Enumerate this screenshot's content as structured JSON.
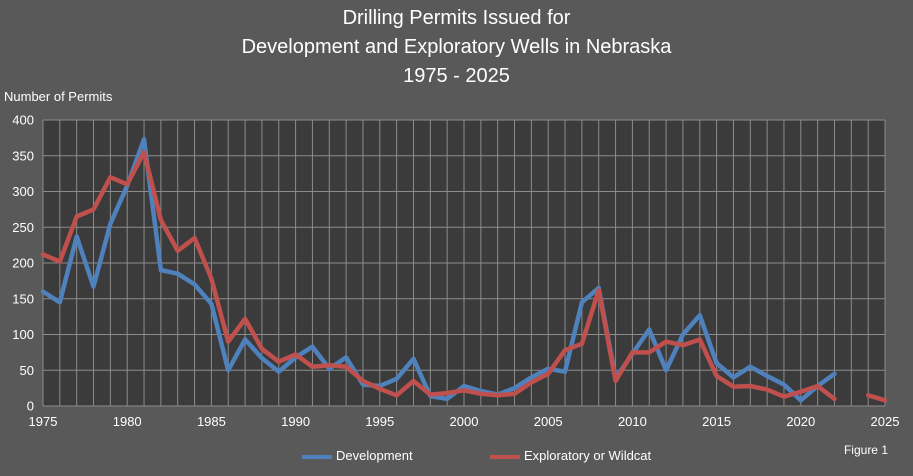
{
  "chart_data": {
    "type": "line",
    "title_lines": [
      "Drilling Permits Issued for",
      "Development and Exploratory Wells in Nebraska",
      "1975 - 2025"
    ],
    "ylabel": "Number of Permits",
    "xlabel": "",
    "ylim": [
      0,
      400
    ],
    "yticks": [
      0,
      50,
      100,
      150,
      200,
      250,
      300,
      350,
      400
    ],
    "xlim": [
      1975,
      2025
    ],
    "xticks": [
      1975,
      1980,
      1985,
      1990,
      1995,
      2000,
      2005,
      2010,
      2015,
      2020,
      2025
    ],
    "grid": true,
    "legend_position": "bottom",
    "figure_label": "Figure 1",
    "background": "#3b3b3b",
    "series": [
      {
        "name": "Development",
        "color": "#4f81bd",
        "points": [
          [
            1975,
            160
          ],
          [
            1976,
            145
          ],
          [
            1977,
            237
          ],
          [
            1978,
            167
          ],
          [
            1979,
            255
          ],
          [
            1980,
            308
          ],
          [
            1981,
            373
          ],
          [
            1982,
            190
          ],
          [
            1983,
            185
          ],
          [
            1984,
            170
          ],
          [
            1985,
            143
          ],
          [
            1986,
            50
          ],
          [
            1987,
            93
          ],
          [
            1988,
            67
          ],
          [
            1989,
            48
          ],
          [
            1990,
            68
          ],
          [
            1991,
            83
          ],
          [
            1992,
            52
          ],
          [
            1993,
            68
          ],
          [
            1994,
            30
          ],
          [
            1995,
            28
          ],
          [
            1996,
            38
          ],
          [
            1997,
            66
          ],
          [
            1998,
            14
          ],
          [
            1999,
            10
          ],
          [
            2000,
            28
          ],
          [
            2001,
            21
          ],
          [
            2002,
            16
          ],
          [
            2003,
            25
          ],
          [
            2004,
            40
          ],
          [
            2005,
            52
          ],
          [
            2006,
            48
          ],
          [
            2007,
            145
          ],
          [
            2008,
            165
          ],
          [
            2009,
            39
          ],
          [
            2010,
            73
          ],
          [
            2011,
            107
          ],
          [
            2012,
            50
          ],
          [
            2013,
            100
          ],
          [
            2014,
            127
          ],
          [
            2015,
            60
          ],
          [
            2016,
            40
          ],
          [
            2017,
            55
          ],
          [
            2018,
            42
          ],
          [
            2019,
            30
          ],
          [
            2020,
            8
          ],
          [
            2021,
            28
          ],
          [
            2022,
            45
          ]
        ]
      },
      {
        "name": "Exploratory or Wildcat",
        "color": "#c0504d",
        "points": [
          [
            1975,
            212
          ],
          [
            1976,
            202
          ],
          [
            1977,
            265
          ],
          [
            1978,
            275
          ],
          [
            1979,
            320
          ],
          [
            1980,
            310
          ],
          [
            1981,
            355
          ],
          [
            1982,
            260
          ],
          [
            1983,
            217
          ],
          [
            1984,
            235
          ],
          [
            1985,
            178
          ],
          [
            1986,
            90
          ],
          [
            1987,
            122
          ],
          [
            1988,
            80
          ],
          [
            1989,
            62
          ],
          [
            1990,
            72
          ],
          [
            1991,
            55
          ],
          [
            1992,
            57
          ],
          [
            1993,
            55
          ],
          [
            1994,
            35
          ],
          [
            1995,
            24
          ],
          [
            1996,
            15
          ],
          [
            1997,
            35
          ],
          [
            1998,
            16
          ],
          [
            1999,
            18
          ],
          [
            2000,
            22
          ],
          [
            2001,
            17
          ],
          [
            2002,
            15
          ],
          [
            2003,
            17
          ],
          [
            2004,
            33
          ],
          [
            2005,
            45
          ],
          [
            2006,
            78
          ],
          [
            2007,
            87
          ],
          [
            2008,
            162
          ],
          [
            2009,
            35
          ],
          [
            2010,
            75
          ],
          [
            2011,
            75
          ],
          [
            2012,
            90
          ],
          [
            2013,
            85
          ],
          [
            2014,
            93
          ],
          [
            2015,
            42
          ],
          [
            2016,
            27
          ],
          [
            2017,
            28
          ],
          [
            2018,
            23
          ],
          [
            2019,
            13
          ],
          [
            2020,
            20
          ],
          [
            2021,
            28
          ],
          [
            2022,
            10
          ],
          [
            2023,
            null
          ],
          [
            2024,
            15
          ],
          [
            2025,
            8
          ]
        ]
      }
    ]
  }
}
